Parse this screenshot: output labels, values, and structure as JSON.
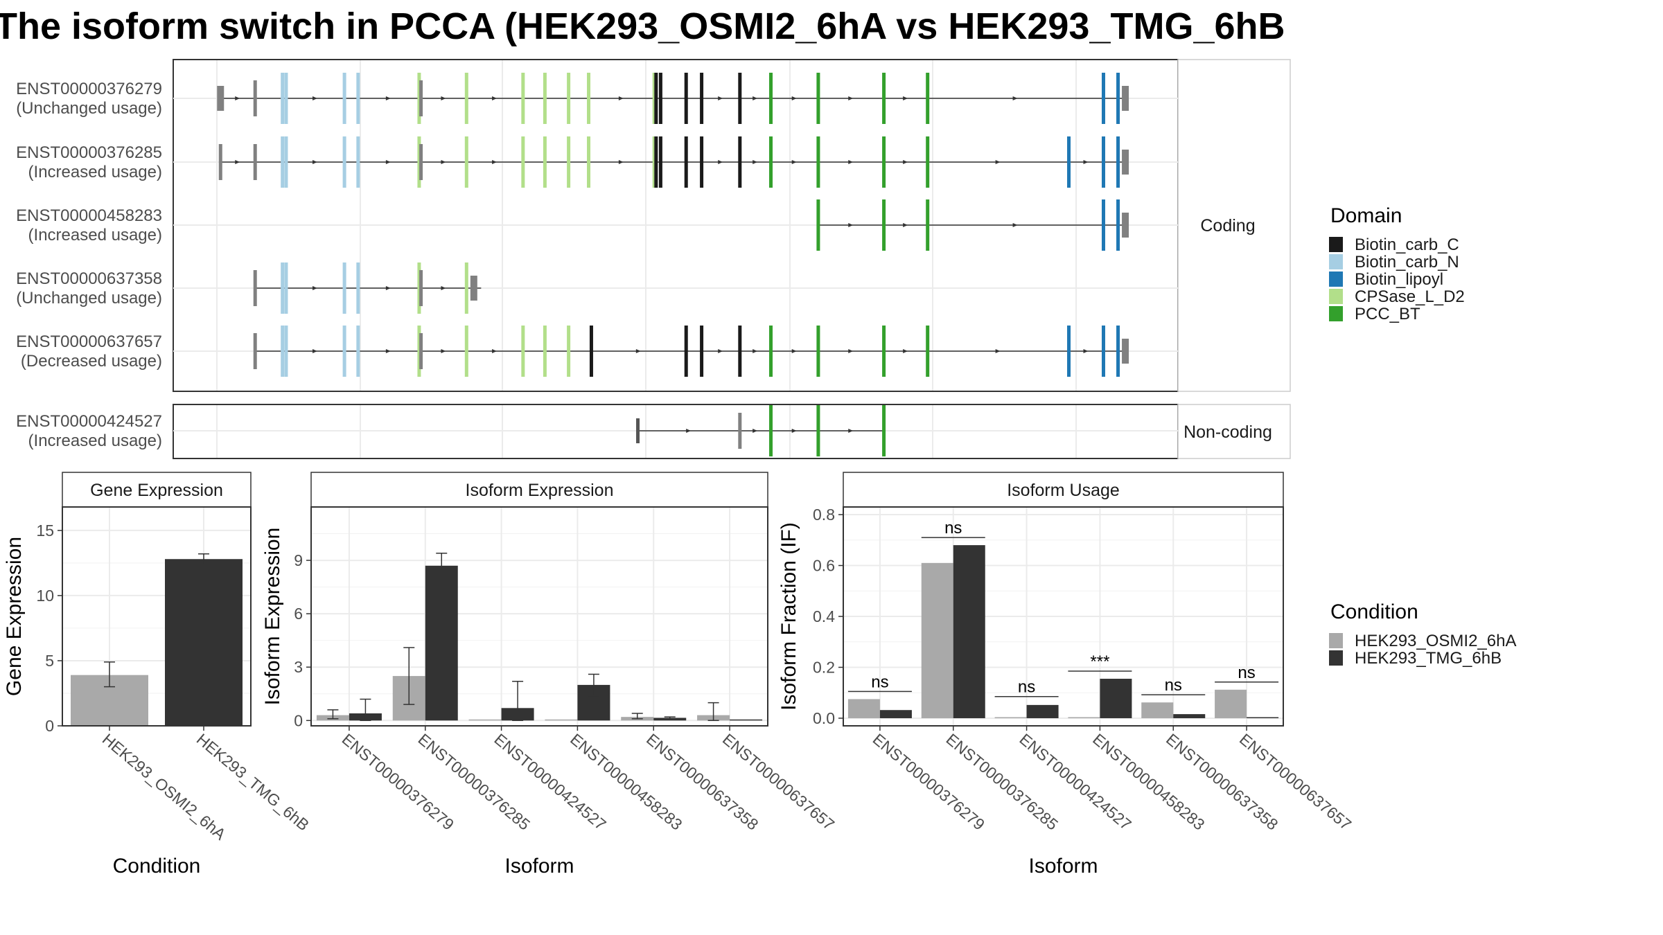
{
  "title": "The isoform switch in PCCA (HEK293_OSMI2_6hA vs HEK293_TMG_6hB",
  "colors": {
    "Biotin_carb_C": "#1a1a1a",
    "Biotin_carb_N": "#a6cee3",
    "Biotin_lipoyl": "#1f78b4",
    "CPSase_L_D2": "#b2df8a",
    "PCC_BT": "#33a02c",
    "utr": "#808080",
    "cond_a": "#a9a9a9",
    "cond_b": "#333333",
    "grid": "#ebebeb",
    "strip_bg": "#ffffff",
    "panel_border": "#333333"
  },
  "domain_legend": {
    "title": "Domain",
    "items": [
      "Biotin_carb_C",
      "Biotin_carb_N",
      "Biotin_lipoyl",
      "CPSase_L_D2",
      "PCC_BT"
    ]
  },
  "condition_legend": {
    "title": "Condition",
    "items": [
      "HEK293_OSMI2_6hA",
      "HEK293_TMG_6hB"
    ]
  },
  "facets": {
    "coding": "Coding",
    "noncoding": "Non-coding"
  },
  "chart_data": [
    {
      "type": "gene-structure",
      "genomic_range": [
        0,
        1000
      ],
      "transcripts": [
        {
          "id": "ENST00000376279",
          "label": "(Unchanged usage)",
          "group": "coding",
          "start": 4,
          "end": 1000,
          "exons": [
            {
              "pos": 4,
              "domain": "utr",
              "wide": true
            },
            {
              "pos": 42,
              "domain": "utr"
            },
            {
              "pos": 72,
              "domain": "Biotin_carb_N"
            },
            {
              "pos": 76,
              "domain": "Biotin_carb_N"
            },
            {
              "pos": 140,
              "domain": "Biotin_carb_N"
            },
            {
              "pos": 155,
              "domain": "Biotin_carb_N"
            },
            {
              "pos": 222,
              "domain": "CPSase_L_D2"
            },
            {
              "pos": 224,
              "domain": "utr"
            },
            {
              "pos": 274,
              "domain": "CPSase_L_D2"
            },
            {
              "pos": 336,
              "domain": "CPSase_L_D2"
            },
            {
              "pos": 360,
              "domain": "CPSase_L_D2"
            },
            {
              "pos": 386,
              "domain": "CPSase_L_D2"
            },
            {
              "pos": 408,
              "domain": "CPSase_L_D2"
            },
            {
              "pos": 480,
              "domain": "CPSase_L_D2"
            },
            {
              "pos": 482,
              "domain": "Biotin_carb_C"
            },
            {
              "pos": 487,
              "domain": "Biotin_carb_C"
            },
            {
              "pos": 515,
              "domain": "Biotin_carb_C"
            },
            {
              "pos": 532,
              "domain": "Biotin_carb_C"
            },
            {
              "pos": 574,
              "domain": "Biotin_carb_C"
            },
            {
              "pos": 608,
              "domain": "PCC_BT"
            },
            {
              "pos": 660,
              "domain": "PCC_BT"
            },
            {
              "pos": 732,
              "domain": "PCC_BT"
            },
            {
              "pos": 780,
              "domain": "PCC_BT"
            },
            {
              "pos": 973,
              "domain": "Biotin_lipoyl"
            },
            {
              "pos": 989,
              "domain": "Biotin_lipoyl"
            },
            {
              "pos": 997,
              "domain": "utr",
              "wide": true
            }
          ]
        },
        {
          "id": "ENST00000376285",
          "label": "(Increased usage)",
          "group": "coding",
          "start": 4,
          "end": 1000,
          "exons": [
            {
              "pos": 4,
              "domain": "utr"
            },
            {
              "pos": 42,
              "domain": "utr"
            },
            {
              "pos": 72,
              "domain": "Biotin_carb_N"
            },
            {
              "pos": 76,
              "domain": "Biotin_carb_N"
            },
            {
              "pos": 140,
              "domain": "Biotin_carb_N"
            },
            {
              "pos": 155,
              "domain": "Biotin_carb_N"
            },
            {
              "pos": 222,
              "domain": "CPSase_L_D2"
            },
            {
              "pos": 224,
              "domain": "utr"
            },
            {
              "pos": 274,
              "domain": "CPSase_L_D2"
            },
            {
              "pos": 336,
              "domain": "CPSase_L_D2"
            },
            {
              "pos": 360,
              "domain": "CPSase_L_D2"
            },
            {
              "pos": 386,
              "domain": "CPSase_L_D2"
            },
            {
              "pos": 408,
              "domain": "CPSase_L_D2"
            },
            {
              "pos": 480,
              "domain": "CPSase_L_D2"
            },
            {
              "pos": 482,
              "domain": "Biotin_carb_C"
            },
            {
              "pos": 487,
              "domain": "Biotin_carb_C"
            },
            {
              "pos": 515,
              "domain": "Biotin_carb_C"
            },
            {
              "pos": 532,
              "domain": "Biotin_carb_C"
            },
            {
              "pos": 574,
              "domain": "Biotin_carb_C"
            },
            {
              "pos": 608,
              "domain": "PCC_BT"
            },
            {
              "pos": 660,
              "domain": "PCC_BT"
            },
            {
              "pos": 732,
              "domain": "PCC_BT"
            },
            {
              "pos": 780,
              "domain": "PCC_BT"
            },
            {
              "pos": 935,
              "domain": "Biotin_lipoyl"
            },
            {
              "pos": 973,
              "domain": "Biotin_lipoyl"
            },
            {
              "pos": 989,
              "domain": "Biotin_lipoyl"
            },
            {
              "pos": 997,
              "domain": "utr",
              "wide": true
            }
          ]
        },
        {
          "id": "ENST00000458283",
          "label": "(Increased usage)",
          "group": "coding",
          "start": 660,
          "end": 1000,
          "exons": [
            {
              "pos": 660,
              "domain": "PCC_BT"
            },
            {
              "pos": 732,
              "domain": "PCC_BT"
            },
            {
              "pos": 780,
              "domain": "PCC_BT"
            },
            {
              "pos": 973,
              "domain": "Biotin_lipoyl"
            },
            {
              "pos": 989,
              "domain": "Biotin_lipoyl"
            },
            {
              "pos": 997,
              "domain": "utr",
              "wide": true
            }
          ]
        },
        {
          "id": "ENST00000637358",
          "label": "(Unchanged usage)",
          "group": "coding",
          "start": 42,
          "end": 290,
          "exons": [
            {
              "pos": 42,
              "domain": "utr"
            },
            {
              "pos": 72,
              "domain": "Biotin_carb_N"
            },
            {
              "pos": 76,
              "domain": "Biotin_carb_N"
            },
            {
              "pos": 140,
              "domain": "Biotin_carb_N"
            },
            {
              "pos": 155,
              "domain": "Biotin_carb_N"
            },
            {
              "pos": 222,
              "domain": "CPSase_L_D2"
            },
            {
              "pos": 224,
              "domain": "utr"
            },
            {
              "pos": 274,
              "domain": "CPSase_L_D2"
            },
            {
              "pos": 282,
              "domain": "utr",
              "wide": true
            }
          ]
        },
        {
          "id": "ENST00000637657",
          "label": "(Decreased usage)",
          "group": "coding",
          "start": 42,
          "end": 1000,
          "exons": [
            {
              "pos": 42,
              "domain": "utr"
            },
            {
              "pos": 72,
              "domain": "Biotin_carb_N"
            },
            {
              "pos": 76,
              "domain": "Biotin_carb_N"
            },
            {
              "pos": 140,
              "domain": "Biotin_carb_N"
            },
            {
              "pos": 155,
              "domain": "Biotin_carb_N"
            },
            {
              "pos": 222,
              "domain": "CPSase_L_D2"
            },
            {
              "pos": 224,
              "domain": "utr"
            },
            {
              "pos": 274,
              "domain": "CPSase_L_D2"
            },
            {
              "pos": 336,
              "domain": "CPSase_L_D2"
            },
            {
              "pos": 360,
              "domain": "CPSase_L_D2"
            },
            {
              "pos": 386,
              "domain": "CPSase_L_D2"
            },
            {
              "pos": 411,
              "domain": "Biotin_carb_C"
            },
            {
              "pos": 515,
              "domain": "Biotin_carb_C"
            },
            {
              "pos": 532,
              "domain": "Biotin_carb_C"
            },
            {
              "pos": 574,
              "domain": "Biotin_carb_C"
            },
            {
              "pos": 608,
              "domain": "PCC_BT"
            },
            {
              "pos": 660,
              "domain": "PCC_BT"
            },
            {
              "pos": 732,
              "domain": "PCC_BT"
            },
            {
              "pos": 780,
              "domain": "PCC_BT"
            },
            {
              "pos": 935,
              "domain": "Biotin_lipoyl"
            },
            {
              "pos": 973,
              "domain": "Biotin_lipoyl"
            },
            {
              "pos": 989,
              "domain": "Biotin_lipoyl"
            },
            {
              "pos": 997,
              "domain": "utr",
              "wide": true
            }
          ]
        },
        {
          "id": "ENST00000424527",
          "label": "(Increased usage)",
          "group": "noncoding",
          "start": 462,
          "end": 732,
          "exons": [
            {
              "pos": 462,
              "domain": "utr",
              "thin": true
            },
            {
              "pos": 574,
              "domain": "utr"
            },
            {
              "pos": 608,
              "domain": "PCC_BT"
            },
            {
              "pos": 660,
              "domain": "PCC_BT"
            },
            {
              "pos": 732,
              "domain": "PCC_BT"
            }
          ]
        }
      ]
    },
    {
      "type": "bar",
      "title": "Gene Expression",
      "xlabel": "Condition",
      "ylabel": "Gene Expression",
      "ylim": [
        0,
        16.8
      ],
      "yticks": [
        0,
        5,
        10,
        15
      ],
      "categories": [
        "HEK293_OSMI2_6hA",
        "HEK293_TMG_6hB"
      ],
      "series": [
        {
          "name": "HEK293_OSMI2_6hA",
          "values": [
            3.9,
            null
          ],
          "err": [
            [
              3.0,
              4.9
            ],
            null
          ]
        },
        {
          "name": "HEK293_TMG_6hB",
          "values": [
            null,
            12.8
          ],
          "err": [
            null,
            [
              12.4,
              13.2
            ]
          ]
        }
      ]
    },
    {
      "type": "bar",
      "title": "Isoform Expression",
      "xlabel": "Isoform",
      "ylabel": "Isoform Expression",
      "ylim": [
        -0.3,
        12
      ],
      "yticks": [
        0,
        3,
        6,
        9
      ],
      "categories": [
        "ENST00000376279",
        "ENST00000376285",
        "ENST00000424527",
        "ENST00000458283",
        "ENST00000637358",
        "ENST00000637657"
      ],
      "series": [
        {
          "name": "HEK293_OSMI2_6hA",
          "values": [
            0.3,
            2.5,
            0.0,
            0.0,
            0.2,
            0.3
          ],
          "err": [
            [
              0.1,
              0.6
            ],
            [
              0.9,
              4.1
            ],
            null,
            null,
            [
              0.1,
              0.4
            ],
            [
              0.0,
              1.0
            ]
          ]
        },
        {
          "name": "HEK293_TMG_6hB",
          "values": [
            0.4,
            8.7,
            0.7,
            2.0,
            0.15,
            0.0
          ],
          "err": [
            [
              0.0,
              1.2
            ],
            [
              8.0,
              9.4
            ],
            [
              0.0,
              2.2
            ],
            [
              1.4,
              2.6
            ],
            [
              0.1,
              0.2
            ],
            null
          ]
        }
      ]
    },
    {
      "type": "bar",
      "title": "Isoform Usage",
      "xlabel": "Isoform",
      "ylabel": "Isoform Fraction (IF)",
      "ylim": [
        -0.03,
        0.83
      ],
      "yticks": [
        0.0,
        0.2,
        0.4,
        0.6,
        0.8
      ],
      "ytick_labels": [
        "0.0",
        "0.2",
        "0.4",
        "0.6",
        "0.8"
      ],
      "categories": [
        "ENST00000376279",
        "ENST00000376285",
        "ENST00000424527",
        "ENST00000458283",
        "ENST00000637358",
        "ENST00000637657"
      ],
      "series": [
        {
          "name": "HEK293_OSMI2_6hA",
          "values": [
            0.075,
            0.61,
            0.0,
            0.0,
            0.062,
            0.112
          ]
        },
        {
          "name": "HEK293_TMG_6hB",
          "values": [
            0.032,
            0.68,
            0.052,
            0.155,
            0.016,
            0.0
          ]
        }
      ],
      "significance": [
        {
          "label": "ns",
          "y": 0.105
        },
        {
          "label": "ns",
          "y": 0.71
        },
        {
          "label": "ns",
          "y": 0.085
        },
        {
          "label": "***",
          "y": 0.185
        },
        {
          "label": "ns",
          "y": 0.092
        },
        {
          "label": "ns",
          "y": 0.142
        }
      ]
    }
  ]
}
